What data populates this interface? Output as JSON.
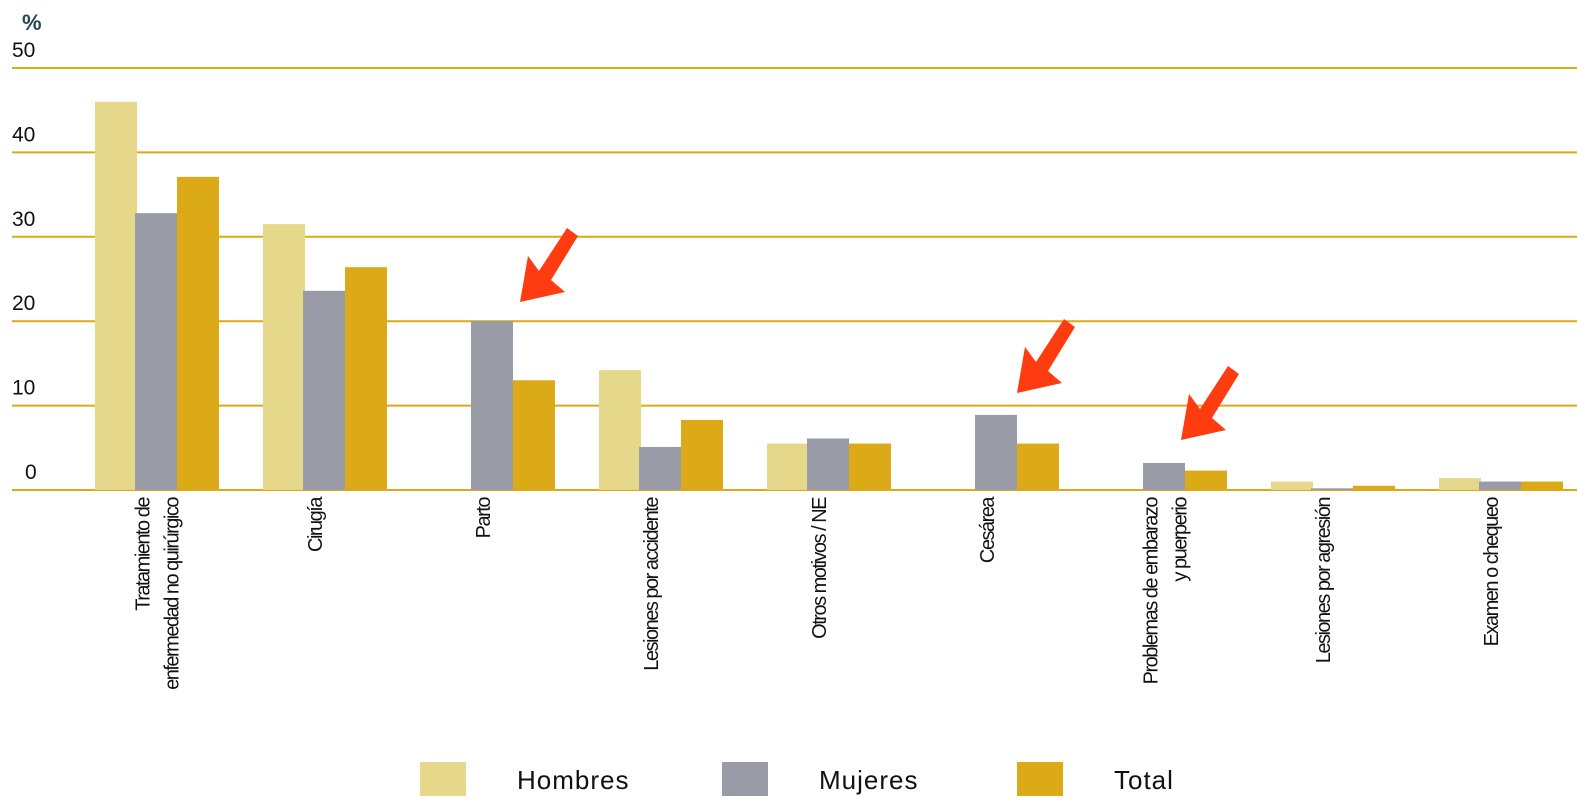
{
  "chart_data": {
    "type": "bar",
    "unit_label": "%",
    "categories": [
      [
        "Tratamiento de",
        "enfermedad no quirúrgico"
      ],
      [
        "Cirugía"
      ],
      [
        "Parto"
      ],
      [
        "Lesiones por accidente"
      ],
      [
        "Otros motivos / NE"
      ],
      [
        "Cesárea"
      ],
      [
        "Problemas de embarazo",
        "y puerperio"
      ],
      [
        "Lesiones por agresión"
      ],
      [
        "Examen o chequeo"
      ]
    ],
    "series": [
      {
        "name": "Hombres",
        "color": "#e6d88a",
        "values": [
          46,
          31.5,
          0,
          14.2,
          5.5,
          0,
          0,
          1.0,
          1.4
        ]
      },
      {
        "name": "Mujeres",
        "color": "#999ca6",
        "values": [
          32.8,
          23.6,
          20,
          5.1,
          6.1,
          8.9,
          3.2,
          0.2,
          1.0
        ]
      },
      {
        "name": "Total",
        "color": "#dcaa16",
        "values": [
          37.1,
          26.4,
          13.0,
          8.3,
          5.5,
          5.5,
          2.3,
          0.5,
          1.0
        ]
      }
    ],
    "yticks": [
      "0",
      "10",
      "20",
      "30",
      "40",
      "50"
    ],
    "ylim": [
      0,
      50
    ],
    "grid": true,
    "grid_color": "#dcaa16",
    "arrow_color": "#ff3b10",
    "arrows_on_categories": [
      2,
      5,
      6
    ],
    "legend_position": "bottom"
  }
}
